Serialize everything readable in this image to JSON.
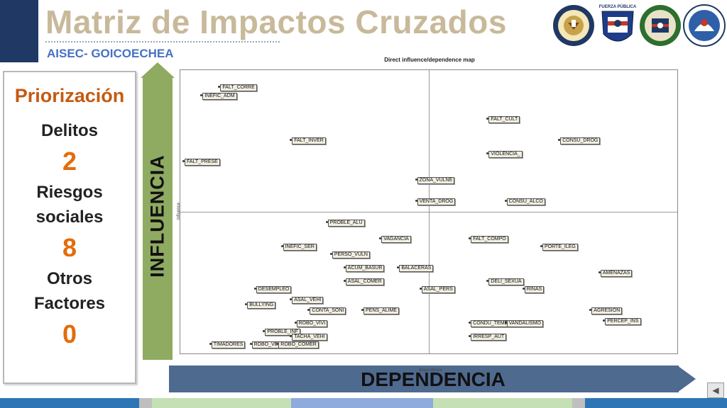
{
  "header": {
    "title": "Matriz de Impactos Cruzados",
    "subtitle": "AISEC- GOICOECHEA",
    "logos": [
      "united-states-embassy-seal",
      "fuerza-publica-shield",
      "policia-nacional-emblem",
      "aisec-emblem"
    ],
    "logo_texts": [
      "UNITED STATES OF AMERICA EMBASSY",
      "FUERZA PÚBLICA"
    ]
  },
  "panel": {
    "heading": "Priorización",
    "items": [
      {
        "label": "Delitos",
        "value": "2"
      },
      {
        "label": "Riesgos sociales",
        "value": "8"
      },
      {
        "label": "Otros Factores",
        "value": "0"
      }
    ]
  },
  "axes": {
    "influence_label": "INFLUENCIA",
    "dependence_label": "DEPENDENCIA"
  },
  "map": {
    "title": "Direct influence/dependence map",
    "x_label": "dependence",
    "y_label": "influence",
    "points": [
      {
        "label": "FALT_CORRE",
        "x": 0.08,
        "y": 0.98
      },
      {
        "label": "INEFIC_ADM",
        "x": 0.04,
        "y": 0.95
      },
      {
        "label": "FALT_CULT",
        "x": 0.68,
        "y": 0.86
      },
      {
        "label": "FALT_INVER",
        "x": 0.24,
        "y": 0.78
      },
      {
        "label": "CONSU_DROG",
        "x": 0.84,
        "y": 0.78
      },
      {
        "label": "VIOLENCIA_",
        "x": 0.68,
        "y": 0.73
      },
      {
        "label": "FALT_PRESE",
        "x": 0.0,
        "y": 0.7
      },
      {
        "label": "ZONA_VULNE",
        "x": 0.52,
        "y": 0.63
      },
      {
        "label": "VENTA_DROG",
        "x": 0.52,
        "y": 0.55
      },
      {
        "label": "CONSU_ALCO",
        "x": 0.72,
        "y": 0.55
      },
      {
        "label": "PROBLE_ALU",
        "x": 0.32,
        "y": 0.47
      },
      {
        "label": "VAGANCIA",
        "x": 0.44,
        "y": 0.41
      },
      {
        "label": "FALT_COMPO",
        "x": 0.64,
        "y": 0.41
      },
      {
        "label": "INEFIC_SER",
        "x": 0.22,
        "y": 0.38
      },
      {
        "label": "PORTE_ILEG",
        "x": 0.8,
        "y": 0.38
      },
      {
        "label": "PERSO_VULN",
        "x": 0.33,
        "y": 0.35
      },
      {
        "label": "ACUM_BASUR",
        "x": 0.36,
        "y": 0.3
      },
      {
        "label": "BALACERAS",
        "x": 0.48,
        "y": 0.3
      },
      {
        "label": "AMENAZAS",
        "x": 0.93,
        "y": 0.28
      },
      {
        "label": "ASAL_COMER",
        "x": 0.36,
        "y": 0.25
      },
      {
        "label": "DELI_SEXUA",
        "x": 0.68,
        "y": 0.25
      },
      {
        "label": "DESEMPLEO",
        "x": 0.16,
        "y": 0.22
      },
      {
        "label": "ASAL_PERS",
        "x": 0.53,
        "y": 0.22
      },
      {
        "label": "RINAS",
        "x": 0.76,
        "y": 0.22
      },
      {
        "label": "ASAL_VEHI",
        "x": 0.24,
        "y": 0.18
      },
      {
        "label": "BULLYING",
        "x": 0.14,
        "y": 0.16
      },
      {
        "label": "CONTA_SONI",
        "x": 0.28,
        "y": 0.14
      },
      {
        "label": "PENS_ALIME",
        "x": 0.4,
        "y": 0.14
      },
      {
        "label": "AGRESION",
        "x": 0.91,
        "y": 0.14
      },
      {
        "label": "PERCEP_INS",
        "x": 0.94,
        "y": 0.1
      },
      {
        "label": "ROBO_VIVI",
        "x": 0.25,
        "y": 0.09
      },
      {
        "label": "CONDU_TEME",
        "x": 0.64,
        "y": 0.09
      },
      {
        "label": "VANDALISMO",
        "x": 0.72,
        "y": 0.09
      },
      {
        "label": "PROBLE_INF",
        "x": 0.18,
        "y": 0.06
      },
      {
        "label": "TACHA_VEHI",
        "x": 0.24,
        "y": 0.04
      },
      {
        "label": "IRRESP_AUT",
        "x": 0.64,
        "y": 0.04
      },
      {
        "label": "TIMADORES",
        "x": 0.06,
        "y": 0.01
      },
      {
        "label": "ROBO_VEHI",
        "x": 0.15,
        "y": 0.01
      },
      {
        "label": "ROBO_COMER",
        "x": 0.21,
        "y": 0.01
      }
    ]
  },
  "nav": {
    "back_icon": "◀"
  },
  "colors": {
    "title": "#c8b99a",
    "subtitle": "#4472c4",
    "influence_bar": "#8faa61",
    "dependence_bar": "#4f6a8f",
    "numbers": "#e46c0a"
  }
}
